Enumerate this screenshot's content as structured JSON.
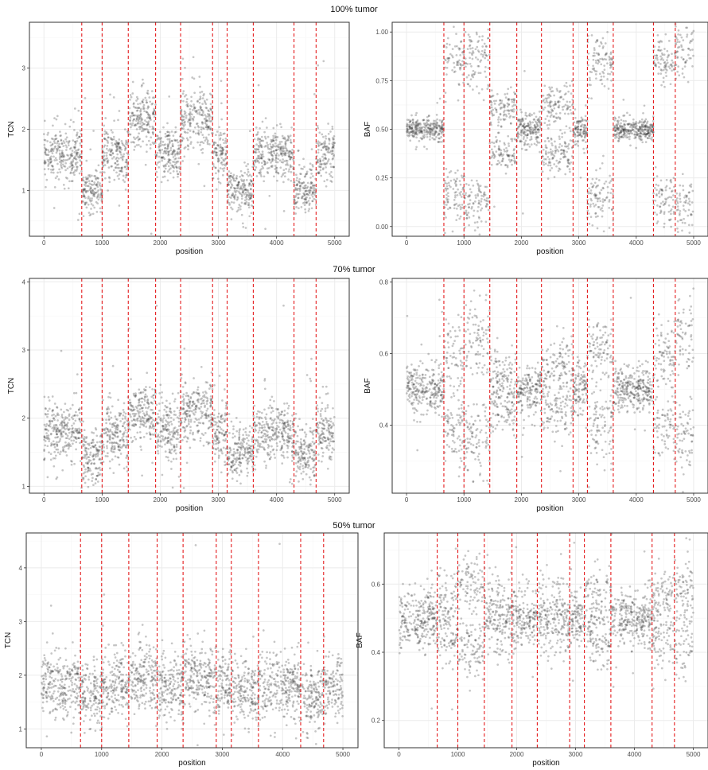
{
  "chart_data": [
    {
      "type": "scatter",
      "panel": "TCN",
      "row_title": "100% tumor",
      "xlabel": "position",
      "ylabel": "TCN",
      "xlim": [
        -250,
        5250
      ],
      "ylim": [
        0.25,
        3.75
      ],
      "xticks": [
        0,
        1000,
        2000,
        3000,
        4000,
        5000
      ],
      "yticks": [
        1,
        2,
        3
      ],
      "grid": true,
      "breakpoints": [
        650,
        1000,
        1450,
        1920,
        2350,
        2900,
        3150,
        3600,
        4300,
        4680
      ],
      "segments": [
        {
          "x": [
            0,
            650
          ],
          "y": 1.6,
          "sd": 0.22
        },
        {
          "x": [
            650,
            1000
          ],
          "y": 1.0,
          "sd": 0.18
        },
        {
          "x": [
            1000,
            1450
          ],
          "y": 1.6,
          "sd": 0.22
        },
        {
          "x": [
            1450,
            1920
          ],
          "y": 2.2,
          "sd": 0.25
        },
        {
          "x": [
            1920,
            2350
          ],
          "y": 1.6,
          "sd": 0.22
        },
        {
          "x": [
            2350,
            2900
          ],
          "y": 2.2,
          "sd": 0.25
        },
        {
          "x": [
            2900,
            3150
          ],
          "y": 1.6,
          "sd": 0.22
        },
        {
          "x": [
            3150,
            3600
          ],
          "y": 1.0,
          "sd": 0.18
        },
        {
          "x": [
            3600,
            4300
          ],
          "y": 1.6,
          "sd": 0.22
        },
        {
          "x": [
            4300,
            4680
          ],
          "y": 1.0,
          "sd": 0.18
        },
        {
          "x": [
            4680,
            5000
          ],
          "y": 1.6,
          "sd": 0.22
        }
      ]
    },
    {
      "type": "scatter",
      "panel": "BAF",
      "xlabel": "position",
      "ylabel": "BAF",
      "xlim": [
        -250,
        5250
      ],
      "ylim": [
        -0.05,
        1.05
      ],
      "xticks": [
        0,
        1000,
        2000,
        3000,
        4000,
        5000
      ],
      "yticks": [
        0.0,
        0.25,
        0.5,
        0.75,
        1.0
      ],
      "ytick_labels": [
        "0.00",
        "0.25",
        "0.50",
        "0.75",
        "1.00"
      ],
      "grid": true,
      "breakpoints": [
        650,
        1000,
        1450,
        1920,
        2350,
        2900,
        3150,
        3600,
        4300,
        4680
      ],
      "segments": [
        {
          "x": [
            0,
            650
          ],
          "y": [
            0.5
          ],
          "sd": 0.03
        },
        {
          "x": [
            650,
            1000
          ],
          "y": [
            0.15,
            0.85
          ],
          "sd": 0.07
        },
        {
          "x": [
            1000,
            1450
          ],
          "y": [
            0.12,
            0.88
          ],
          "sd": 0.07
        },
        {
          "x": [
            1450,
            1920
          ],
          "y": [
            0.38,
            0.62
          ],
          "sd": 0.05
        },
        {
          "x": [
            1920,
            2350
          ],
          "y": [
            0.5
          ],
          "sd": 0.04
        },
        {
          "x": [
            2350,
            2900
          ],
          "y": [
            0.38,
            0.62
          ],
          "sd": 0.05
        },
        {
          "x": [
            2900,
            3150
          ],
          "y": [
            0.5
          ],
          "sd": 0.04
        },
        {
          "x": [
            3150,
            3600
          ],
          "y": [
            0.15,
            0.85
          ],
          "sd": 0.07
        },
        {
          "x": [
            3600,
            4300
          ],
          "y": [
            0.5
          ],
          "sd": 0.03
        },
        {
          "x": [
            4300,
            4680
          ],
          "y": [
            0.15,
            0.85
          ],
          "sd": 0.07
        },
        {
          "x": [
            4680,
            5000
          ],
          "y": [
            0.1,
            0.9
          ],
          "sd": 0.07
        }
      ]
    },
    {
      "type": "scatter",
      "panel": "TCN",
      "row_title": "70% tumor",
      "xlabel": "position",
      "ylabel": "TCN",
      "xlim": [
        -250,
        5250
      ],
      "ylim": [
        0.9,
        4.05
      ],
      "xticks": [
        0,
        1000,
        2000,
        3000,
        4000,
        5000
      ],
      "yticks": [
        1,
        2,
        3,
        4
      ],
      "grid": true,
      "breakpoints": [
        650,
        1000,
        1450,
        1920,
        2350,
        2900,
        3150,
        3600,
        4300,
        4680
      ],
      "segments": [
        {
          "x": [
            0,
            650
          ],
          "y": 1.8,
          "sd": 0.22
        },
        {
          "x": [
            650,
            1000
          ],
          "y": 1.45,
          "sd": 0.2
        },
        {
          "x": [
            1000,
            1450
          ],
          "y": 1.75,
          "sd": 0.22
        },
        {
          "x": [
            1450,
            1920
          ],
          "y": 2.1,
          "sd": 0.22
        },
        {
          "x": [
            1920,
            2350
          ],
          "y": 1.8,
          "sd": 0.22
        },
        {
          "x": [
            2350,
            2900
          ],
          "y": 2.1,
          "sd": 0.22
        },
        {
          "x": [
            2900,
            3150
          ],
          "y": 1.8,
          "sd": 0.22
        },
        {
          "x": [
            3150,
            3600
          ],
          "y": 1.5,
          "sd": 0.2
        },
        {
          "x": [
            3600,
            4300
          ],
          "y": 1.8,
          "sd": 0.22
        },
        {
          "x": [
            4300,
            4680
          ],
          "y": 1.5,
          "sd": 0.2
        },
        {
          "x": [
            4680,
            5000
          ],
          "y": 1.8,
          "sd": 0.22
        }
      ]
    },
    {
      "type": "scatter",
      "panel": "BAF",
      "xlabel": "position",
      "ylabel": "BAF",
      "xlim": [
        -250,
        5250
      ],
      "ylim": [
        0.21,
        0.81
      ],
      "xticks": [
        0,
        1000,
        2000,
        3000,
        4000,
        5000
      ],
      "yticks": [
        0.4,
        0.6,
        0.8
      ],
      "ytick_labels": [
        "0.4",
        "0.6",
        "0.8"
      ],
      "grid": true,
      "breakpoints": [
        650,
        1000,
        1450,
        1920,
        2350,
        2900,
        3150,
        3600,
        4300,
        4680
      ],
      "segments": [
        {
          "x": [
            0,
            650
          ],
          "y": [
            0.5
          ],
          "sd": 0.035
        },
        {
          "x": [
            650,
            1000
          ],
          "y": [
            0.4,
            0.6
          ],
          "sd": 0.05
        },
        {
          "x": [
            1000,
            1450
          ],
          "y": [
            0.36,
            0.64
          ],
          "sd": 0.05
        },
        {
          "x": [
            1450,
            1920
          ],
          "y": [
            0.46,
            0.54
          ],
          "sd": 0.045
        },
        {
          "x": [
            1920,
            2350
          ],
          "y": [
            0.5
          ],
          "sd": 0.035
        },
        {
          "x": [
            2350,
            2900
          ],
          "y": [
            0.44,
            0.56
          ],
          "sd": 0.045
        },
        {
          "x": [
            2900,
            3150
          ],
          "y": [
            0.5
          ],
          "sd": 0.035
        },
        {
          "x": [
            3150,
            3600
          ],
          "y": [
            0.4,
            0.6
          ],
          "sd": 0.05
        },
        {
          "x": [
            3600,
            4300
          ],
          "y": [
            0.5
          ],
          "sd": 0.03
        },
        {
          "x": [
            4300,
            4680
          ],
          "y": [
            0.4,
            0.6
          ],
          "sd": 0.05
        },
        {
          "x": [
            4680,
            5000
          ],
          "y": [
            0.36,
            0.64
          ],
          "sd": 0.05
        }
      ]
    },
    {
      "type": "scatter",
      "panel": "TCN",
      "row_title": "50% tumor",
      "xlabel": "position",
      "ylabel": "TCN",
      "xlim": [
        -250,
        5250
      ],
      "ylim": [
        0.65,
        4.65
      ],
      "xticks": [
        0,
        1000,
        2000,
        3000,
        4000,
        5000
      ],
      "yticks": [
        1,
        2,
        3,
        4
      ],
      "grid": true,
      "breakpoints": [
        650,
        1000,
        1450,
        1920,
        2350,
        2900,
        3150,
        3600,
        4300,
        4680
      ],
      "segments": [
        {
          "x": [
            0,
            650
          ],
          "y": 1.8,
          "sd": 0.32
        },
        {
          "x": [
            650,
            1000
          ],
          "y": 1.65,
          "sd": 0.3
        },
        {
          "x": [
            1000,
            1450
          ],
          "y": 1.8,
          "sd": 0.32
        },
        {
          "x": [
            1450,
            1920
          ],
          "y": 1.95,
          "sd": 0.32
        },
        {
          "x": [
            1920,
            2350
          ],
          "y": 1.8,
          "sd": 0.32
        },
        {
          "x": [
            2350,
            2900
          ],
          "y": 1.95,
          "sd": 0.32
        },
        {
          "x": [
            2900,
            3150
          ],
          "y": 1.8,
          "sd": 0.32
        },
        {
          "x": [
            3150,
            3600
          ],
          "y": 1.65,
          "sd": 0.3
        },
        {
          "x": [
            3600,
            4300
          ],
          "y": 1.8,
          "sd": 0.32
        },
        {
          "x": [
            4300,
            4680
          ],
          "y": 1.65,
          "sd": 0.3
        },
        {
          "x": [
            4680,
            5000
          ],
          "y": 1.8,
          "sd": 0.32
        }
      ]
    },
    {
      "type": "scatter",
      "panel": "BAF",
      "xlabel": "position",
      "ylabel": "BAF",
      "xlim": [
        -250,
        5250
      ],
      "ylim": [
        0.12,
        0.75
      ],
      "xticks": [
        0,
        1000,
        2000,
        3000,
        4000,
        5000
      ],
      "yticks": [
        0.2,
        0.4,
        0.6
      ],
      "ytick_labels": [
        "0.2",
        "0.4",
        "0.6"
      ],
      "grid": true,
      "breakpoints": [
        650,
        1000,
        1450,
        1920,
        2350,
        2900,
        3150,
        3600,
        4300,
        4680
      ],
      "segments": [
        {
          "x": [
            0,
            650
          ],
          "y": [
            0.5
          ],
          "sd": 0.045
        },
        {
          "x": [
            650,
            1000
          ],
          "y": [
            0.44,
            0.56
          ],
          "sd": 0.045
        },
        {
          "x": [
            1000,
            1450
          ],
          "y": [
            0.42,
            0.6
          ],
          "sd": 0.045
        },
        {
          "x": [
            1450,
            1920
          ],
          "y": [
            0.47,
            0.53
          ],
          "sd": 0.045
        },
        {
          "x": [
            1920,
            2350
          ],
          "y": [
            0.5
          ],
          "sd": 0.04
        },
        {
          "x": [
            2350,
            2900
          ],
          "y": [
            0.46,
            0.54
          ],
          "sd": 0.045
        },
        {
          "x": [
            2900,
            3150
          ],
          "y": [
            0.5
          ],
          "sd": 0.04
        },
        {
          "x": [
            3150,
            3600
          ],
          "y": [
            0.44,
            0.56
          ],
          "sd": 0.045
        },
        {
          "x": [
            3600,
            4300
          ],
          "y": [
            0.5
          ],
          "sd": 0.04
        },
        {
          "x": [
            4300,
            4680
          ],
          "y": [
            0.44,
            0.56
          ],
          "sd": 0.045
        },
        {
          "x": [
            4680,
            5000
          ],
          "y": [
            0.42,
            0.58
          ],
          "sd": 0.045
        }
      ]
    }
  ],
  "style": {
    "point_color": "#333333",
    "breakpoint_color": "#e41a1c",
    "grid_major": "#ebebeb",
    "grid_minor": "#f5f5f5",
    "panel_border": "#333333"
  }
}
